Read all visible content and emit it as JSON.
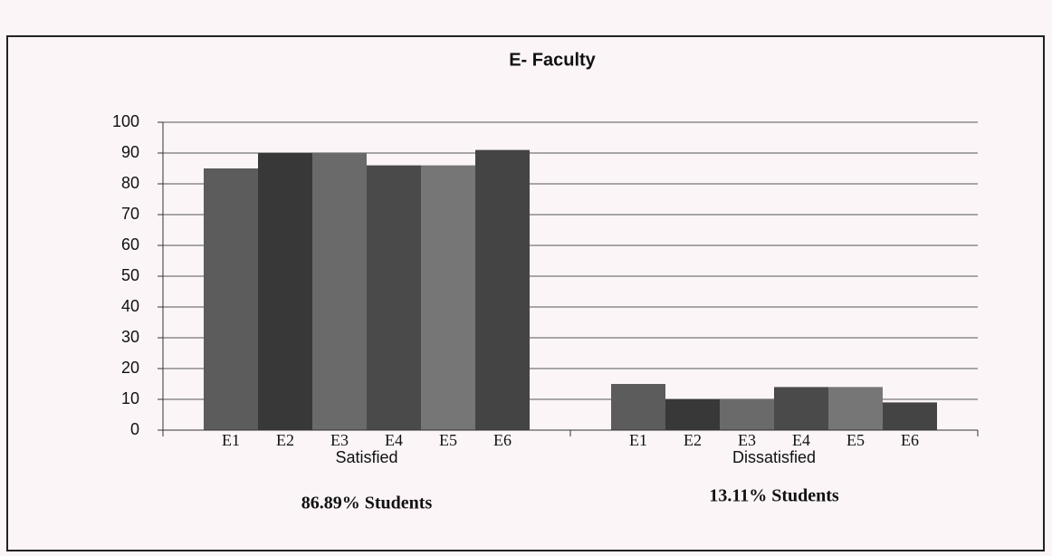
{
  "chart_data": {
    "type": "bar",
    "title": "E- Faculty",
    "categories": [
      "Satisfied",
      "Dissatisfied"
    ],
    "series": [
      {
        "name": "E1",
        "color": "#5c5c5c",
        "values": [
          85,
          15
        ]
      },
      {
        "name": "E2",
        "color": "#383838",
        "values": [
          90,
          10
        ]
      },
      {
        "name": "E3",
        "color": "#6a6a6a",
        "values": [
          90,
          10
        ]
      },
      {
        "name": "E4",
        "color": "#4a4a4a",
        "values": [
          86,
          14
        ]
      },
      {
        "name": "E5",
        "color": "#767676",
        "values": [
          86,
          14
        ]
      },
      {
        "name": "E6",
        "color": "#444444",
        "values": [
          91,
          9
        ]
      }
    ],
    "annotations": [
      "86.89% Students",
      "13.11% Students"
    ],
    "ylim": [
      0,
      100
    ],
    "yticks": [
      0,
      10,
      20,
      30,
      40,
      50,
      60,
      70,
      80,
      90,
      100
    ],
    "grid": true
  }
}
